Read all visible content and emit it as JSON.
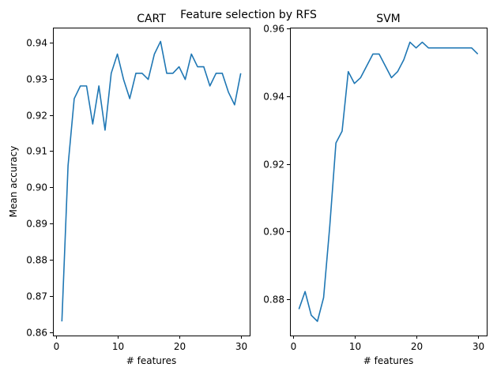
{
  "figure": {
    "suptitle": "Feature selection by RFS"
  },
  "chart_data": [
    {
      "type": "line",
      "title": "CART",
      "xlabel": "# features",
      "ylabel": "Mean accuracy",
      "xlim": [
        -0.45,
        31.45
      ],
      "ylim": [
        0.8591,
        0.9441
      ],
      "xticks": [
        0,
        10,
        20,
        30
      ],
      "xtick_labels": [
        "0",
        "10",
        "20",
        "30"
      ],
      "yticks": [
        0.86,
        0.87,
        0.88,
        0.89,
        0.9,
        0.91,
        0.92,
        0.93,
        0.94
      ],
      "ytick_labels": [
        "0.86",
        "0.87",
        "0.88",
        "0.89",
        "0.90",
        "0.91",
        "0.92",
        "0.93",
        "0.94"
      ],
      "grid": false,
      "series": [
        {
          "color": "#1f77b4",
          "x": [
            1,
            2,
            3,
            4,
            5,
            6,
            7,
            8,
            9,
            10,
            11,
            12,
            13,
            14,
            15,
            16,
            17,
            18,
            19,
            20,
            21,
            22,
            23,
            24,
            25,
            26,
            27,
            28,
            29,
            30
          ],
          "y": [
            0.863,
            0.906,
            0.9245,
            0.928,
            0.928,
            0.9175,
            0.928,
            0.9158,
            0.9315,
            0.9368,
            0.9298,
            0.9245,
            0.9315,
            0.9315,
            0.9298,
            0.9368,
            0.9403,
            0.9315,
            0.9315,
            0.9333,
            0.9298,
            0.9368,
            0.9333,
            0.9333,
            0.928,
            0.9315,
            0.9315,
            0.9263,
            0.9228,
            0.9315
          ]
        }
      ]
    },
    {
      "type": "line",
      "title": "SVM",
      "xlabel": "# features",
      "ylabel": "",
      "xlim": [
        -0.45,
        31.45
      ],
      "ylim": [
        0.8693,
        0.9603
      ],
      "xticks": [
        0,
        10,
        20,
        30
      ],
      "xtick_labels": [
        "0",
        "10",
        "20",
        "30"
      ],
      "yticks": [
        0.88,
        0.9,
        0.92,
        0.94,
        0.96
      ],
      "ytick_labels": [
        "0.88",
        "0.90",
        "0.92",
        "0.94",
        "0.96"
      ],
      "grid": false,
      "series": [
        {
          "color": "#1f77b4",
          "x": [
            1,
            2,
            3,
            4,
            5,
            6,
            7,
            8,
            9,
            10,
            11,
            12,
            13,
            14,
            15,
            16,
            17,
            18,
            19,
            20,
            21,
            22,
            23,
            24,
            25,
            26,
            27,
            28,
            29,
            30
          ],
          "y": [
            0.8771,
            0.8823,
            0.8753,
            0.8735,
            0.8805,
            0.9016,
            0.9262,
            0.9297,
            0.9473,
            0.9438,
            0.9455,
            0.949,
            0.9525,
            0.9525,
            0.949,
            0.9455,
            0.9473,
            0.9508,
            0.956,
            0.9543,
            0.956,
            0.9543,
            0.9543,
            0.9543,
            0.9543,
            0.9543,
            0.9543,
            0.9543,
            0.9543,
            0.9525
          ]
        }
      ]
    }
  ]
}
